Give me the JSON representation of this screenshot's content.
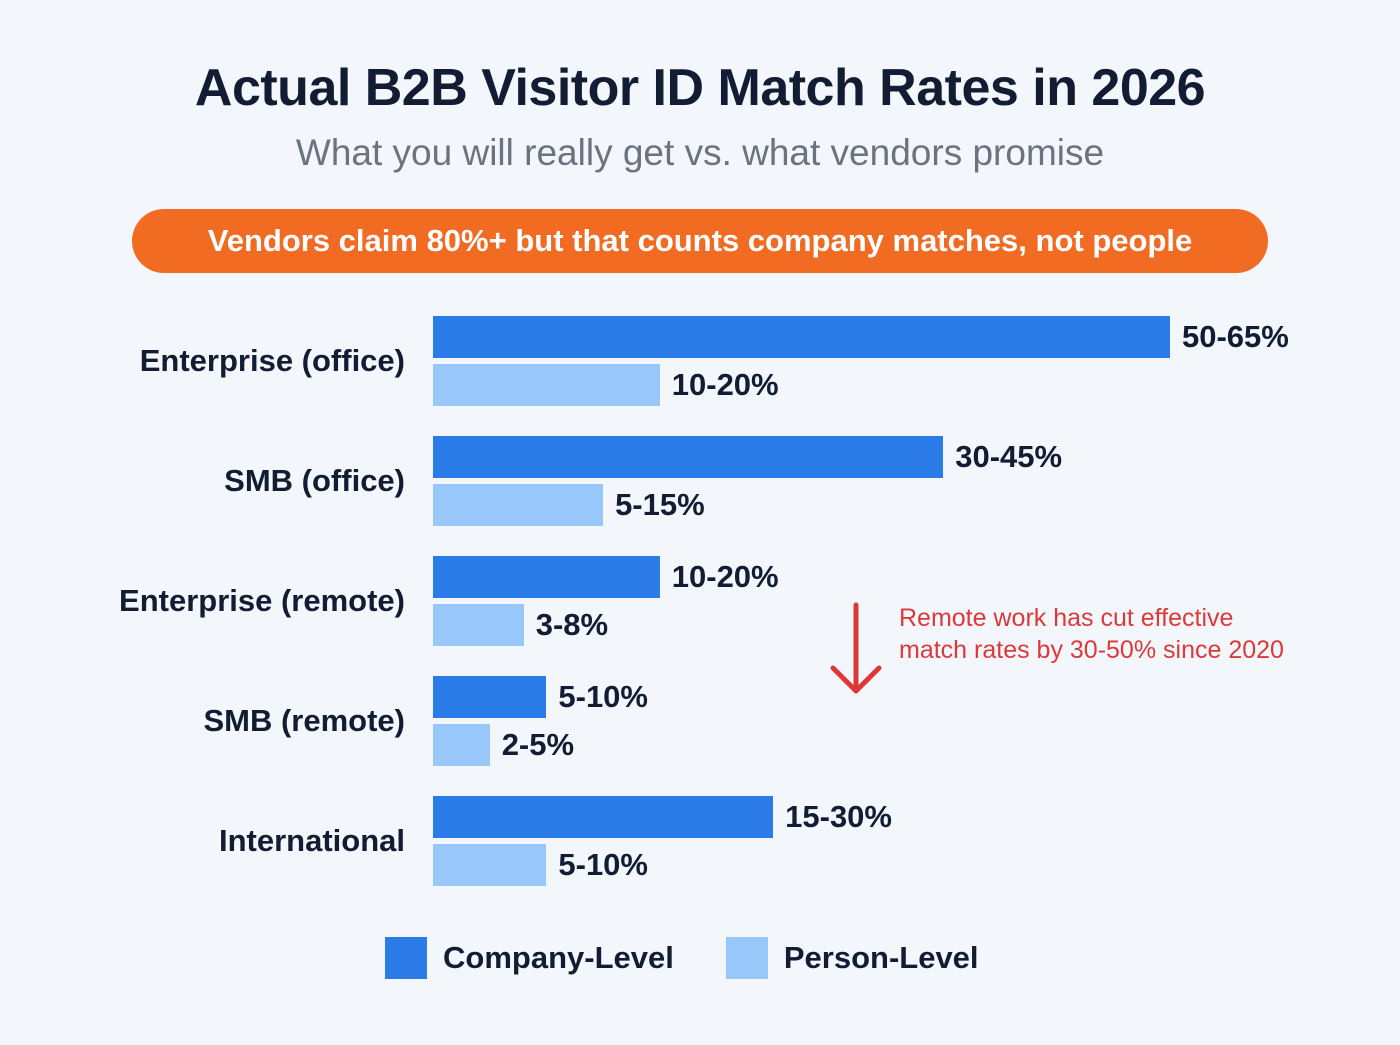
{
  "title": "Actual B2B Visitor ID Match Rates in 2026",
  "subtitle": "What you will really get vs. what vendors promise",
  "banner": "Vendors claim 80%+ but that counts company matches, not people",
  "annotation": {
    "text": "Remote work has cut effective match rates by 30-50% since 2020",
    "icon": "arrow-down-icon",
    "color": "#dc3a3a"
  },
  "chart_data": {
    "type": "bar",
    "orientation": "horizontal",
    "title": "Actual B2B Visitor ID Match Rates in 2026",
    "categories": [
      "Enterprise (office)",
      "SMB (office)",
      "Enterprise (remote)",
      "SMB (remote)",
      "International"
    ],
    "series": [
      {
        "name": "Company-Level",
        "color": "#2b7be9",
        "labels": [
          "50-65%",
          "30-45%",
          "10-20%",
          "5-10%",
          "15-30%"
        ],
        "low": [
          50,
          30,
          10,
          5,
          15
        ],
        "high": [
          65,
          45,
          20,
          10,
          30
        ]
      },
      {
        "name": "Person-Level",
        "color": "#98c7fa",
        "labels": [
          "10-20%",
          "5-15%",
          "3-8%",
          "2-5%",
          "5-10%"
        ],
        "low": [
          10,
          5,
          3,
          2,
          5
        ],
        "high": [
          20,
          15,
          8,
          5,
          10
        ]
      }
    ],
    "unit": "%",
    "axis_visible": false,
    "grid": false,
    "legend_position": "bottom"
  }
}
